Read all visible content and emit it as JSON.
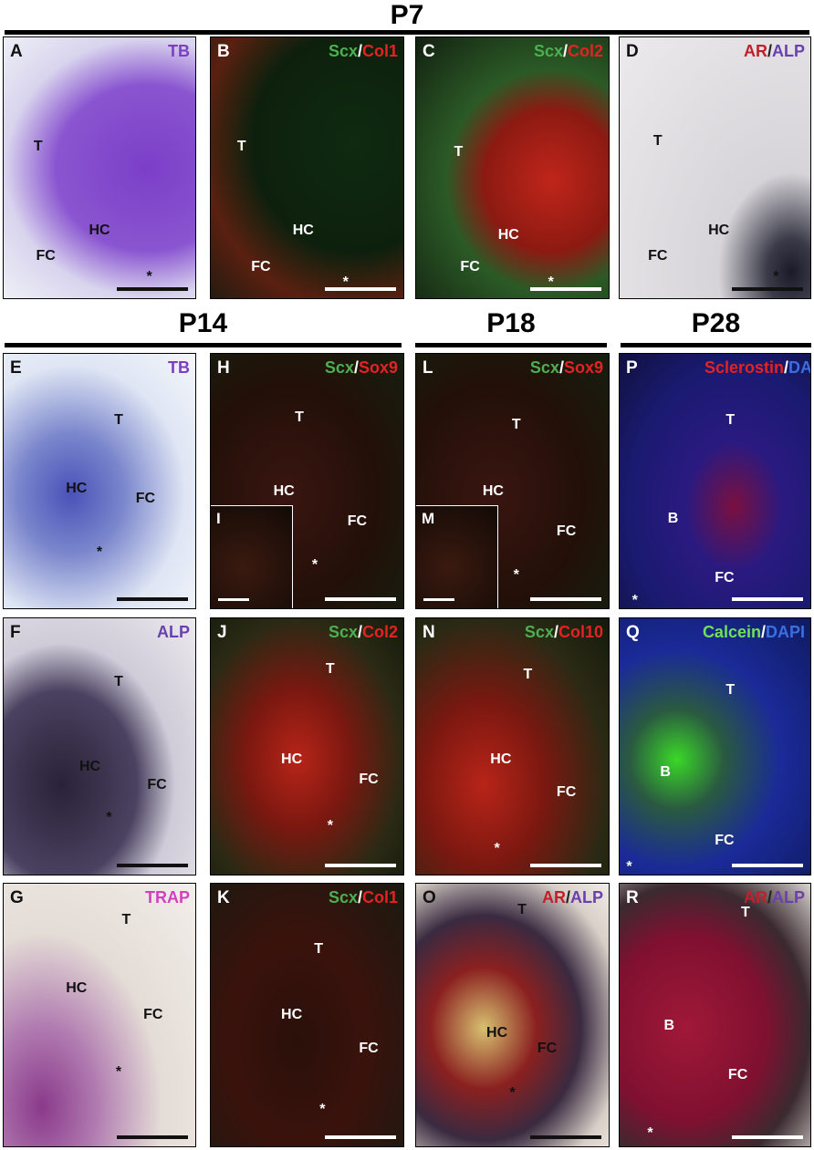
{
  "stages": [
    "P7",
    "P14",
    "P18",
    "P28"
  ],
  "panels": [
    {
      "letter": "A",
      "stain": [
        {
          "text": "TB",
          "color": "#7b3fbf"
        }
      ],
      "labels": [
        "T",
        "HC",
        "FC",
        "*"
      ]
    },
    {
      "letter": "B",
      "stain": [
        {
          "text": "Scx",
          "color": "#4caf50"
        },
        {
          "text": "/",
          "color": "#ffffff"
        },
        {
          "text": "Col1",
          "color": "#e52222"
        }
      ],
      "labels": [
        "T",
        "HC",
        "FC",
        "*"
      ]
    },
    {
      "letter": "C",
      "stain": [
        {
          "text": "Scx",
          "color": "#4caf50"
        },
        {
          "text": "/",
          "color": "#ffffff"
        },
        {
          "text": "Col2",
          "color": "#e52222"
        }
      ],
      "labels": [
        "T",
        "HC",
        "FC",
        "*"
      ]
    },
    {
      "letter": "D",
      "stain": [
        {
          "text": "AR",
          "color": "#c0202a"
        },
        {
          "text": "/",
          "color": "#222222"
        },
        {
          "text": "ALP",
          "color": "#6a3fb0"
        }
      ],
      "labels": [
        "T",
        "HC",
        "FC",
        "*"
      ]
    },
    {
      "letter": "E",
      "stain": [
        {
          "text": "TB",
          "color": "#7b3fbf"
        }
      ],
      "labels": [
        "T",
        "HC",
        "FC",
        "*"
      ]
    },
    {
      "letter": "H",
      "stain": [
        {
          "text": "Scx",
          "color": "#4caf50"
        },
        {
          "text": "/",
          "color": "#ffffff"
        },
        {
          "text": "Sox9",
          "color": "#e52222"
        }
      ],
      "labels": [
        "T",
        "HC",
        "FC",
        "*"
      ],
      "inset": "I"
    },
    {
      "letter": "L",
      "stain": [
        {
          "text": "Scx",
          "color": "#4caf50"
        },
        {
          "text": "/",
          "color": "#ffffff"
        },
        {
          "text": "Sox9",
          "color": "#e52222"
        }
      ],
      "labels": [
        "T",
        "HC",
        "FC",
        "*"
      ],
      "inset": "M"
    },
    {
      "letter": "P",
      "stain": [
        {
          "text": "Sclerostin",
          "color": "#e52222"
        },
        {
          "text": "/",
          "color": "#ffffff"
        },
        {
          "text": "DAPI",
          "color": "#3a6fe0"
        }
      ],
      "labels": [
        "T",
        "B",
        "FC",
        "*"
      ]
    },
    {
      "letter": "F",
      "stain": [
        {
          "text": "ALP",
          "color": "#6a3fb0"
        }
      ],
      "labels": [
        "T",
        "HC",
        "FC",
        "*"
      ]
    },
    {
      "letter": "J",
      "stain": [
        {
          "text": "Scx",
          "color": "#4caf50"
        },
        {
          "text": "/",
          "color": "#ffffff"
        },
        {
          "text": "Col2",
          "color": "#e52222"
        }
      ],
      "labels": [
        "T",
        "HC",
        "FC",
        "*"
      ]
    },
    {
      "letter": "N",
      "stain": [
        {
          "text": "Scx",
          "color": "#4caf50"
        },
        {
          "text": "/",
          "color": "#ffffff"
        },
        {
          "text": "Col10",
          "color": "#e52222"
        }
      ],
      "labels": [
        "T",
        "HC",
        "FC",
        "*"
      ]
    },
    {
      "letter": "Q",
      "stain": [
        {
          "text": "Calcein",
          "color": "#6ee05a"
        },
        {
          "text": "/",
          "color": "#ffffff"
        },
        {
          "text": "DAPI",
          "color": "#3a6fe0"
        }
      ],
      "labels": [
        "T",
        "B",
        "FC",
        "*"
      ]
    },
    {
      "letter": "G",
      "stain": [
        {
          "text": "TRAP",
          "color": "#d23fc0"
        }
      ],
      "labels": [
        "T",
        "HC",
        "FC",
        "*"
      ]
    },
    {
      "letter": "K",
      "stain": [
        {
          "text": "Scx",
          "color": "#4caf50"
        },
        {
          "text": "/",
          "color": "#ffffff"
        },
        {
          "text": "Col1",
          "color": "#e52222"
        }
      ],
      "labels": [
        "T",
        "HC",
        "FC",
        "*"
      ]
    },
    {
      "letter": "O",
      "stain": [
        {
          "text": "AR",
          "color": "#c0202a"
        },
        {
          "text": "/",
          "color": "#222222"
        },
        {
          "text": "ALP",
          "color": "#6a3fb0"
        }
      ],
      "labels": [
        "T",
        "HC",
        "FC",
        "*"
      ]
    },
    {
      "letter": "R",
      "stain": [
        {
          "text": "AR",
          "color": "#c0202a"
        },
        {
          "text": "/",
          "color": "#222222"
        },
        {
          "text": "ALP",
          "color": "#6a3fb0"
        }
      ],
      "labels": [
        "T",
        "B",
        "FC",
        "*"
      ]
    }
  ]
}
